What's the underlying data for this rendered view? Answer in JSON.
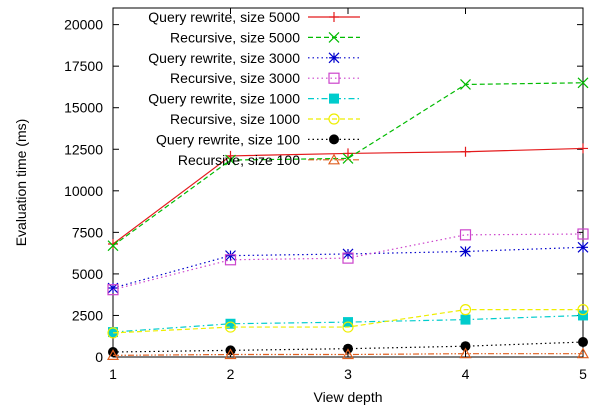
{
  "chart_data": {
    "type": "line",
    "xlabel": "View depth",
    "ylabel": "Evaluation time (ms)",
    "xlim": [
      1,
      5
    ],
    "ylim": [
      0,
      21000
    ],
    "xticks": [
      1,
      2,
      3,
      4,
      5
    ],
    "yticks": [
      0,
      2500,
      5000,
      7500,
      10000,
      12500,
      15000,
      17500,
      20000
    ],
    "x": [
      1,
      2,
      3,
      4,
      5
    ],
    "grid": false,
    "legend_position": "top-left",
    "series": [
      {
        "name": "Query rewrite, size 5000",
        "values": [
          6800,
          12100,
          12250,
          12350,
          12550
        ],
        "color": "#e41a1c",
        "dash": "solid",
        "marker": "plus"
      },
      {
        "name": "Recursive, size 5000",
        "values": [
          6700,
          11850,
          11950,
          16400,
          16500
        ],
        "color": "#00bb00",
        "dash": "dashed",
        "marker": "x"
      },
      {
        "name": "Query rewrite, size 3000",
        "values": [
          4150,
          6100,
          6200,
          6350,
          6600
        ],
        "color": "#0000cc",
        "dash": "dotted",
        "marker": "star"
      },
      {
        "name": "Recursive, size 3000",
        "values": [
          4050,
          5850,
          5950,
          7350,
          7400
        ],
        "color": "#cc44cc",
        "dash": "dotted",
        "marker": "square-open"
      },
      {
        "name": "Query rewrite, size 1000",
        "values": [
          1500,
          2000,
          2100,
          2250,
          2500
        ],
        "color": "#00cccc",
        "dash": "dashdot",
        "marker": "square-filled"
      },
      {
        "name": "Recursive, size 1000",
        "values": [
          1450,
          1800,
          1800,
          2850,
          2850
        ],
        "color": "#eeee00",
        "dash": "dashed",
        "marker": "circle-open"
      },
      {
        "name": "Query rewrite, size 100",
        "values": [
          300,
          400,
          500,
          650,
          900
        ],
        "color": "#000000",
        "dash": "dotted",
        "marker": "circle-filled"
      },
      {
        "name": "Recursive, size 100",
        "values": [
          100,
          150,
          150,
          200,
          200
        ],
        "color": "#e06020",
        "dash": "dashdotdot",
        "marker": "triangle-open"
      }
    ]
  }
}
